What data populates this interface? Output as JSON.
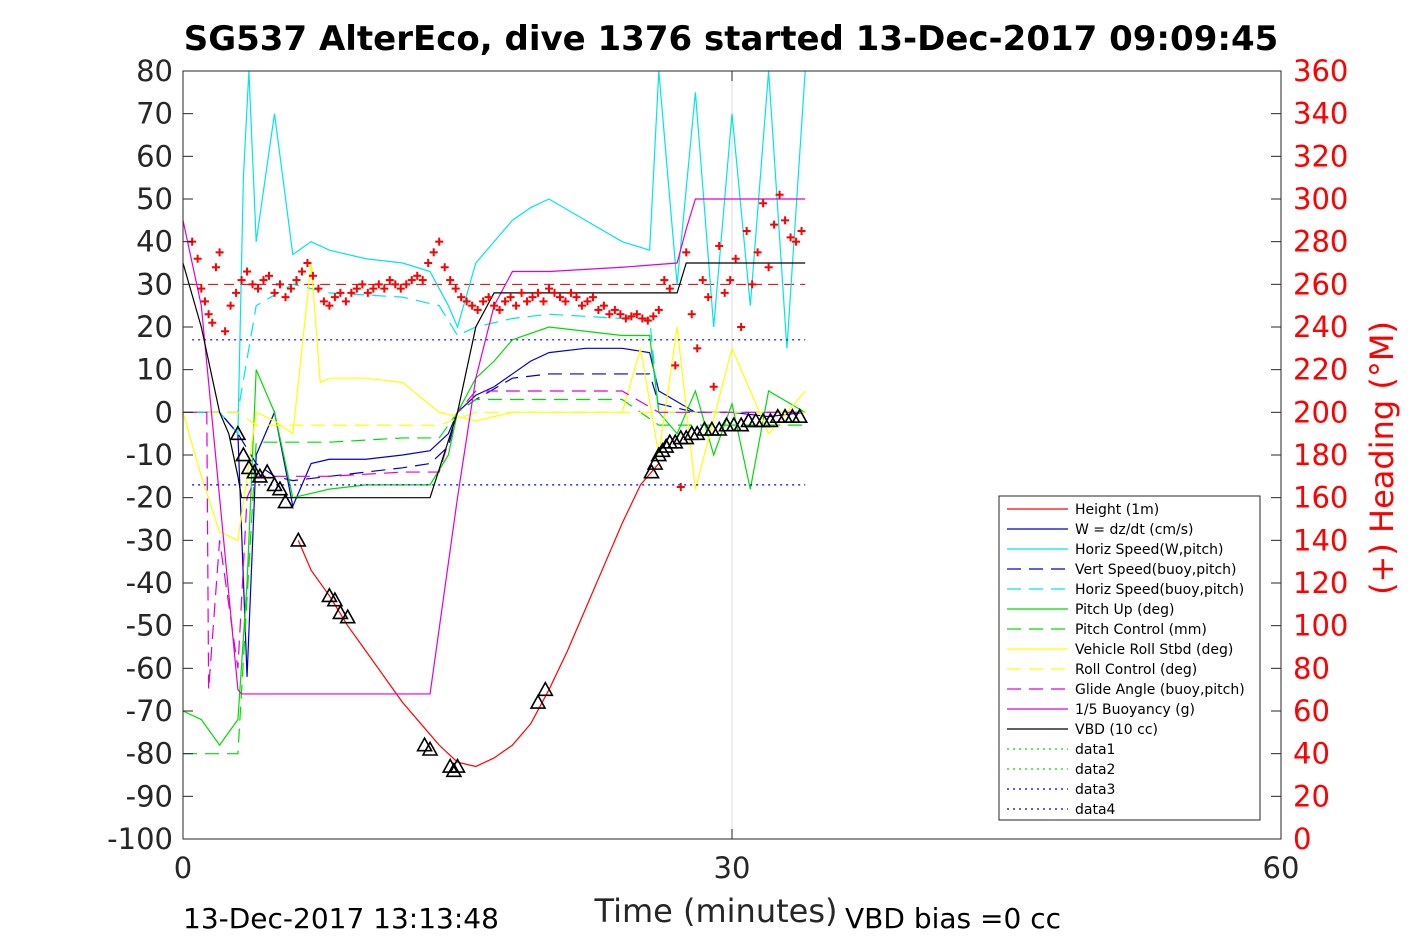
{
  "chart_data": {
    "type": "line",
    "title": "SG537 AlterEco, dive 1376 started 13-Dec-2017 09:09:45",
    "xlabel": "Time (minutes)",
    "ylabel": "",
    "y2label": "(+) Heading (°M)",
    "xlim": [
      0,
      60
    ],
    "ylim": [
      -100,
      80
    ],
    "y2lim": [
      0,
      360
    ],
    "xticks": [
      "0",
      "30",
      "60"
    ],
    "yticks": [
      "80",
      "70",
      "60",
      "50",
      "40",
      "30",
      "20",
      "10",
      "0",
      "-10",
      "-20",
      "-30",
      "-40",
      "-50",
      "-60",
      "-70",
      "-80",
      "-90",
      "-100"
    ],
    "y2ticks": [
      "360",
      "340",
      "320",
      "300",
      "280",
      "260",
      "240",
      "220",
      "200",
      "180",
      "160",
      "140",
      "120",
      "100",
      "80",
      "60",
      "40",
      "20",
      "0"
    ],
    "grid": "x at 30",
    "legend_position": "bottom-right",
    "footer_left": "13-Dec-2017 13:13:48",
    "footer_right": "VBD bias =0 cc",
    "series": [
      {
        "name": "Height (1m)",
        "color": "#ff0000",
        "style": "solid",
        "x": [
          6.3,
          7,
          8,
          9,
          10,
          11,
          12,
          13,
          14,
          15,
          16,
          17,
          18,
          19,
          20,
          21,
          22,
          23,
          24,
          25,
          26
        ],
        "y": [
          -30,
          -37,
          -43,
          -50,
          -56,
          -62,
          -68,
          -73,
          -78,
          -82,
          -83,
          -81,
          -78,
          -73,
          -65,
          -56,
          -46,
          -36,
          -26,
          -17,
          -12
        ]
      },
      {
        "name": "W = dz/dt (cm/s)",
        "color": "#0000cc",
        "style": "solid",
        "x": [
          0,
          2,
          3,
          3.5,
          4,
          5,
          6,
          7,
          8,
          10,
          12,
          13.5,
          14.5,
          15,
          16,
          17,
          18,
          19,
          20,
          22,
          24,
          25.5,
          26,
          28,
          30,
          32,
          34
        ],
        "y": [
          0,
          0,
          -5,
          -62,
          -10,
          0,
          -22,
          -12,
          -11,
          -11,
          -10,
          -9,
          -5,
          0,
          4,
          6,
          9,
          12,
          14,
          15,
          15,
          14,
          5,
          0,
          0,
          -1,
          0
        ]
      },
      {
        "name": "Horiz Speed(W,pitch)",
        "color": "#00e5e5",
        "style": "solid",
        "x": [
          0,
          2,
          3,
          3.3,
          3.6,
          4,
          5,
          6,
          7,
          8,
          10,
          12,
          13.5,
          14.5,
          15,
          16,
          17,
          18,
          19,
          20,
          22,
          24,
          25.5,
          26,
          27,
          28,
          29,
          30,
          31,
          32,
          33,
          34
        ],
        "y": [
          0,
          0,
          -5,
          55,
          80,
          40,
          70,
          37,
          40,
          38,
          36,
          35,
          33,
          25,
          20,
          35,
          40,
          45,
          48,
          50,
          45,
          40,
          38,
          80,
          30,
          75,
          20,
          70,
          25,
          80,
          15,
          80
        ]
      },
      {
        "name": "Vert Speed(buoy,pitch)",
        "color": "#0000cc",
        "style": "dashed",
        "x": [
          0,
          2,
          3,
          4,
          5,
          6,
          8,
          10,
          12,
          13.5,
          14.5,
          15,
          16,
          18,
          20,
          22,
          24,
          25.5,
          26,
          28,
          30,
          34
        ],
        "y": [
          0,
          0,
          -5,
          -12,
          -15,
          -16,
          -15,
          -14,
          -13,
          -12,
          -8,
          0,
          3,
          8,
          9,
          9,
          9,
          9,
          2,
          0,
          0,
          0
        ]
      },
      {
        "name": "Horiz Speed(buoy,pitch)",
        "color": "#00e5e5",
        "style": "dashed",
        "x": [
          0,
          3,
          4,
          6,
          8,
          12,
          14,
          15,
          16,
          18,
          20,
          24,
          25.5,
          26,
          34
        ],
        "y": [
          0,
          0,
          25,
          30,
          28,
          27,
          25,
          18,
          20,
          22,
          23,
          22,
          22,
          0,
          0
        ]
      },
      {
        "name": "Pitch Up (deg)",
        "color": "#00dd00",
        "style": "solid",
        "x": [
          0,
          1,
          2,
          3,
          3.5,
          4,
          5,
          6,
          8,
          10,
          12,
          13.5,
          14.5,
          15,
          16,
          17,
          18,
          20,
          22,
          24,
          25.5,
          26,
          27,
          28,
          29,
          30,
          31,
          32,
          34
        ],
        "y": [
          -70,
          -72,
          -78,
          -72,
          -40,
          10,
          0,
          -20,
          -18,
          -17,
          -17,
          -17,
          -10,
          0,
          8,
          12,
          17,
          20,
          19,
          18,
          18,
          0,
          -5,
          5,
          -10,
          2,
          -18,
          5,
          0
        ]
      },
      {
        "name": "Pitch Control (mm)",
        "color": "#00dd00",
        "style": "dashed",
        "x": [
          0,
          3,
          4,
          6,
          8,
          12,
          14,
          15,
          16,
          20,
          24,
          26,
          28,
          30,
          32,
          34
        ],
        "y": [
          -80,
          -80,
          -7,
          -7,
          -7,
          -6,
          -6,
          0,
          3,
          3,
          3,
          -3,
          -3,
          -3,
          -3,
          -3
        ]
      },
      {
        "name": "Vehicle Roll Stbd (deg)",
        "color": "#ffff00",
        "style": "solid",
        "x": [
          0,
          1,
          2,
          3,
          4,
          5,
          6,
          7,
          7.5,
          8,
          10,
          12,
          14,
          16,
          18,
          20,
          22,
          24,
          25,
          26,
          27,
          28,
          30,
          32,
          34
        ],
        "y": [
          0,
          -15,
          -28,
          -30,
          0,
          -2,
          -5,
          35,
          7,
          8,
          8,
          7,
          0,
          -2,
          0,
          0,
          0,
          0,
          15,
          -10,
          20,
          -18,
          15,
          -5,
          5
        ]
      },
      {
        "name": "Roll Control (deg)",
        "color": "#ffff00",
        "style": "dashed",
        "x": [
          0,
          3,
          4,
          6,
          8,
          12,
          14,
          16,
          20,
          24,
          26,
          30,
          34
        ],
        "y": [
          0,
          0,
          -3,
          -3,
          -3,
          -3,
          -3,
          0,
          0,
          0,
          0,
          0,
          0
        ]
      },
      {
        "name": "Glide Angle (buoy,pitch)",
        "color": "#dd00dd",
        "style": "dashed",
        "x": [
          0,
          1.3,
          1.4,
          2,
          3,
          3.5,
          4,
          6,
          8,
          12,
          14,
          15,
          16,
          20,
          24,
          26,
          30,
          34
        ],
        "y": [
          0,
          0,
          -65,
          -30,
          -60,
          -20,
          -15,
          -15,
          -15,
          -14,
          -14,
          0,
          5,
          5,
          5,
          0,
          0,
          0
        ]
      },
      {
        "name": "1/5 Buoyancy (g)",
        "color": "#dd00dd",
        "style": "solid",
        "x": [
          0,
          1,
          2,
          3,
          3.2,
          4,
          6,
          8,
          10,
          13.5,
          15,
          16,
          17,
          18,
          20,
          24,
          27,
          27.5,
          28,
          30,
          34
        ],
        "y": [
          45,
          25,
          -20,
          -65,
          -66,
          -66,
          -66,
          -66,
          -66,
          -66,
          -20,
          8,
          25,
          33,
          33,
          34,
          35,
          43,
          50,
          50,
          50
        ]
      },
      {
        "name": "VBD (10 cc)",
        "color": "#000000",
        "style": "solid",
        "x": [
          0,
          1,
          2,
          2.5,
          3,
          3.2,
          4,
          6,
          8,
          10,
          12,
          13.5,
          15,
          16,
          17,
          18,
          20,
          24,
          27,
          27.5,
          28,
          30,
          34
        ],
        "y": [
          35,
          20,
          0,
          -5,
          -15,
          -20,
          -20,
          -20,
          -20,
          -20,
          -20,
          -20,
          0,
          20,
          28,
          28,
          28,
          28,
          28,
          35,
          35,
          35,
          35
        ]
      },
      {
        "name": "data1",
        "color": "#00dd00",
        "style": "dotted",
        "x": [],
        "y": []
      },
      {
        "name": "data2",
        "color": "#00dd00",
        "style": "dotted",
        "x": [],
        "y": []
      },
      {
        "name": "data3",
        "color": "#0000cc",
        "style": "dotted",
        "x": [
          0.5,
          34
        ],
        "y": [
          17,
          17
        ]
      },
      {
        "name": "data4",
        "color": "#0000cc",
        "style": "dotted",
        "x": [
          0.5,
          34
        ],
        "y": [
          -17,
          -17
        ]
      }
    ],
    "heading_ref": {
      "color": "#cc0000",
      "style": "dashed",
      "x": [
        0.5,
        34
      ],
      "y": [
        260,
        260
      ]
    },
    "heading": {
      "color": "#ff0000",
      "marker": "plus",
      "x": [
        0.5,
        0.8,
        1,
        1.2,
        1.4,
        1.6,
        1.8,
        2,
        2.3,
        2.6,
        2.9,
        3.2,
        3.5,
        3.8,
        4.1,
        4.4,
        4.7,
        5,
        5.3,
        5.6,
        5.9,
        6.2,
        6.5,
        6.8,
        7.1,
        7.4,
        7.7,
        8,
        8.3,
        8.6,
        8.9,
        9.2,
        9.5,
        9.8,
        10.1,
        10.4,
        10.7,
        11,
        11.3,
        11.6,
        11.9,
        12.2,
        12.5,
        12.8,
        13.1,
        13.4,
        13.7,
        14,
        14.3,
        14.6,
        14.9,
        15.2,
        15.5,
        15.8,
        16.1,
        16.4,
        16.7,
        17,
        17.3,
        17.6,
        17.9,
        18.2,
        18.5,
        18.8,
        19.1,
        19.4,
        19.7,
        20,
        20.3,
        20.6,
        20.9,
        21.2,
        21.5,
        21.8,
        22.1,
        22.4,
        22.7,
        23,
        23.3,
        23.6,
        23.9,
        24.2,
        24.5,
        24.8,
        25.1,
        25.4,
        25.7,
        26,
        26.3,
        26.6,
        26.9,
        27.2,
        27.5,
        27.8,
        28.1,
        28.4,
        28.7,
        29,
        29.3,
        29.6,
        29.9,
        30.2,
        30.5,
        30.8,
        31.1,
        31.4,
        31.7,
        32,
        32.3,
        32.6,
        32.9,
        33.2,
        33.5,
        33.8
      ],
      "y": [
        280,
        272,
        258,
        252,
        246,
        242,
        268,
        275,
        238,
        250,
        256,
        262,
        266,
        260,
        258,
        262,
        264,
        256,
        260,
        254,
        258,
        262,
        266,
        270,
        264,
        258,
        252,
        250,
        254,
        256,
        252,
        256,
        258,
        260,
        256,
        258,
        260,
        258,
        262,
        260,
        258,
        260,
        262,
        264,
        262,
        270,
        275,
        280,
        268,
        262,
        258,
        254,
        252,
        250,
        248,
        252,
        254,
        250,
        248,
        252,
        254,
        250,
        256,
        252,
        254,
        256,
        252,
        258,
        256,
        254,
        252,
        256,
        254,
        250,
        252,
        254,
        248,
        250,
        246,
        248,
        246,
        244,
        245,
        246,
        244,
        243,
        245,
        248,
        262,
        258,
        222,
        165,
        275,
        246,
        230,
        262,
        254,
        212,
        278,
        256,
        262,
        272,
        240,
        285,
        260,
        275,
        298,
        268,
        288,
        302,
        290,
        282,
        280,
        285
      ]
    },
    "markers": {
      "color": "#000000",
      "marker": "triangle",
      "x": [
        3,
        3.3,
        3.6,
        3.9,
        4.2,
        4.6,
        5.0,
        5.3,
        5.6,
        6.3,
        8,
        8.3,
        8.6,
        9,
        13.2,
        13.5,
        14.6,
        14.8,
        15,
        19.4,
        19.8,
        25.6,
        25.8,
        26,
        26.2,
        26.4,
        26.6,
        26.9,
        27.2,
        27.5,
        27.8,
        28.1,
        28.5,
        28.9,
        29.3,
        29.7,
        30.1,
        30.5,
        30.9,
        31.3,
        31.7,
        32.1,
        32.5,
        32.9,
        33.3,
        33.7
      ],
      "y": [
        -5,
        -10,
        -13,
        -14,
        -15,
        -14,
        -17,
        -18,
        -21,
        -30,
        -43,
        -44,
        -47,
        -48,
        -78,
        -79,
        -83,
        -84,
        -83,
        -68,
        -65,
        -14,
        -12,
        -10,
        -9,
        -8,
        -7,
        -7,
        -6,
        -6,
        -5,
        -5,
        -4,
        -4,
        -4,
        -3,
        -3,
        -3,
        -2,
        -2,
        -2,
        -2,
        -1,
        -1,
        -1,
        -1
      ]
    }
  }
}
